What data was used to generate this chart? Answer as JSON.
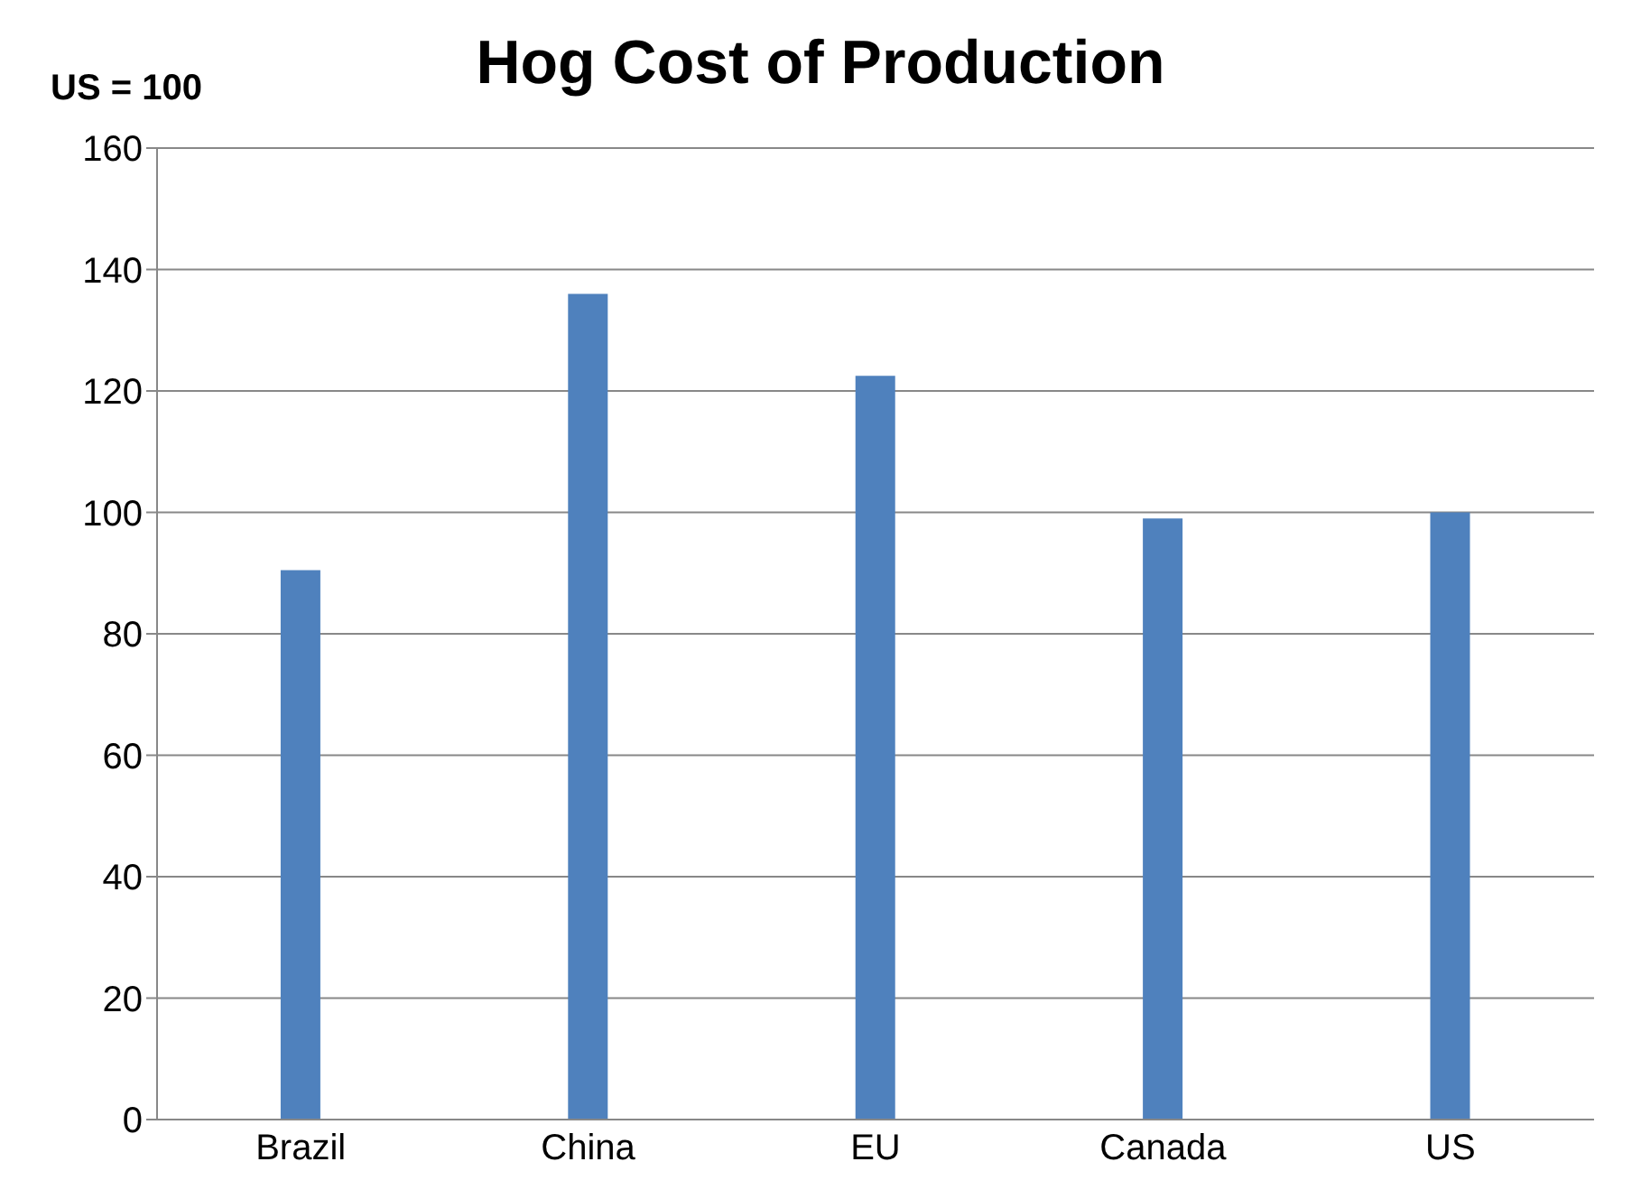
{
  "chart_data": {
    "type": "bar",
    "title": "Hog Cost of Production",
    "ylabel": "US = 100",
    "categories": [
      "Brazil",
      "China",
      "EU",
      "Canada",
      "US"
    ],
    "values": [
      90.5,
      136,
      122.5,
      99,
      100
    ],
    "color": "#4f81bd",
    "ylim": [
      0,
      160
    ],
    "yticks": [
      0,
      20,
      40,
      60,
      80,
      100,
      120,
      140,
      160
    ],
    "grid": "y"
  }
}
